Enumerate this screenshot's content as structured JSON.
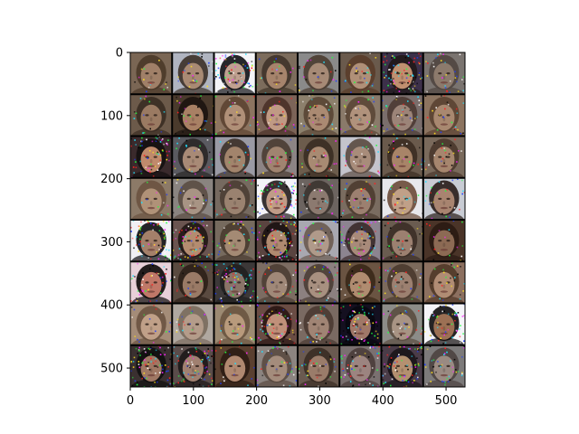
{
  "figure": {
    "content": "grid of generated face samples",
    "grid_rows": 8,
    "grid_cols": 8,
    "image_width": 530,
    "image_height": 530
  },
  "chart_data": {
    "type": "image",
    "title": "",
    "xlabel": "",
    "ylabel": "",
    "xlim": [
      0,
      530
    ],
    "ylim": [
      530,
      0
    ],
    "xticks": [
      0,
      100,
      200,
      300,
      400,
      500
    ],
    "yticks": [
      0,
      100,
      200,
      300,
      400,
      500
    ],
    "xtick_labels": [
      "0",
      "100",
      "200",
      "300",
      "400",
      "500"
    ],
    "ytick_labels": [
      "0",
      "100",
      "200",
      "300",
      "400",
      "500"
    ],
    "grid": false
  },
  "tiles": [
    {
      "bg": "#7a6654",
      "face": "#a08068",
      "hair": "#4a3828",
      "noise": 0.15
    },
    {
      "bg": "#b0b4c0",
      "face": "#a88a74",
      "hair": "#3c3028",
      "noise": 0.25
    },
    {
      "bg": "#f4f4f8",
      "face": "#c0a090",
      "hair": "#101014",
      "noise": 0.75
    },
    {
      "bg": "#7c6c5c",
      "face": "#a6846c",
      "hair": "#40342a",
      "noise": 0.2
    },
    {
      "bg": "#8a8a8a",
      "face": "#a68a76",
      "hair": "#4a3c30",
      "noise": 0.2
    },
    {
      "bg": "#6a5a4c",
      "face": "#b09078",
      "hair": "#5a3c2a",
      "noise": 0.25
    },
    {
      "bg": "#3c304a",
      "face": "#c09070",
      "hair": "#201818",
      "noise": 0.85
    },
    {
      "bg": "#7a7470",
      "face": "#8c7a6c",
      "hair": "#504640",
      "noise": 0.35
    },
    {
      "bg": "#6c5a4a",
      "face": "#9a7a62",
      "hair": "#3a2c22",
      "noise": 0.15
    },
    {
      "bg": "#4a3a2c",
      "face": "#a88064",
      "hair": "#1c1410",
      "noise": 0.25
    },
    {
      "bg": "#8c7460",
      "face": "#b09078",
      "hair": "#5c4432",
      "noise": 0.2
    },
    {
      "bg": "#7c6458",
      "face": "#c09a84",
      "hair": "#4a3028",
      "noise": 0.3
    },
    {
      "bg": "#8c806c",
      "face": "#aa8a72",
      "hair": "#584434",
      "noise": 0.3
    },
    {
      "bg": "#8a7a6a",
      "face": "#b0927c",
      "hair": "#5a4636",
      "noise": 0.3
    },
    {
      "bg": "#7a6e6c",
      "face": "#9c8478",
      "hair": "#4c3a34",
      "noise": 0.4
    },
    {
      "bg": "#8c7460",
      "face": "#a88870",
      "hair": "#5a4232",
      "noise": 0.3
    },
    {
      "bg": "#3a2a2c",
      "face": "#c08a6c",
      "hair": "#141010",
      "noise": 0.8
    },
    {
      "bg": "#5a5a60",
      "face": "#a88a76",
      "hair": "#2a2626",
      "noise": 0.3
    },
    {
      "bg": "#9a9aa4",
      "face": "#a2846c",
      "hair": "#3c3028",
      "noise": 0.2
    },
    {
      "bg": "#8c8484",
      "face": "#a08470",
      "hair": "#4a3c32",
      "noise": 0.3
    },
    {
      "bg": "#6c5c4c",
      "face": "#a88a72",
      "hair": "#3a2c22",
      "noise": 0.25
    },
    {
      "bg": "#c4c4cc",
      "face": "#a88c7a",
      "hair": "#5a4a40",
      "noise": 0.25
    },
    {
      "bg": "#6a5a4c",
      "face": "#a88468",
      "hair": "#3c2c22",
      "noise": 0.35
    },
    {
      "bg": "#7a6a5c",
      "face": "#a6866e",
      "hair": "#4a382c",
      "noise": 0.3
    },
    {
      "bg": "#8c7a68",
      "face": "#b09278",
      "hair": "#6a5240",
      "noise": 0.15
    },
    {
      "bg": "#8a8480",
      "face": "#a89484",
      "hair": "#5a4c42",
      "noise": 0.25
    },
    {
      "bg": "#766a60",
      "face": "#9a8270",
      "hair": "#4c3e34",
      "noise": 0.25
    },
    {
      "bg": "#f4f4f8",
      "face": "#c09c88",
      "hair": "#221c1c",
      "noise": 0.7
    },
    {
      "bg": "#6c6460",
      "face": "#8c7a70",
      "hair": "#3c3430",
      "noise": 0.3
    },
    {
      "bg": "#7a6c60",
      "face": "#9c8070",
      "hair": "#4c3c30",
      "noise": 0.3
    },
    {
      "bg": "#e8e8ec",
      "face": "#c0a088",
      "hair": "#6a4a38",
      "noise": 0.25
    },
    {
      "bg": "#c8ccd4",
      "face": "#a88470",
      "hair": "#281c18",
      "noise": 0.3
    },
    {
      "bg": "#f0f0f4",
      "face": "#a4806a",
      "hair": "#0c0c10",
      "noise": 0.8
    },
    {
      "bg": "#6a5450",
      "face": "#b48c70",
      "hair": "#201614",
      "noise": 0.8
    },
    {
      "bg": "#766a5e",
      "face": "#a48a74",
      "hair": "#4a3c30",
      "noise": 0.3
    },
    {
      "bg": "#5a4440",
      "face": "#b08a70",
      "hair": "#1a1212",
      "noise": 0.85
    },
    {
      "bg": "#a8a8b0",
      "face": "#b09a8a",
      "hair": "#6a5a50",
      "noise": 0.35
    },
    {
      "bg": "#8c8490",
      "face": "#a88a7a",
      "hair": "#3a2a2a",
      "noise": 0.6
    },
    {
      "bg": "#6a5c50",
      "face": "#9c8070",
      "hair": "#3c2e26",
      "noise": 0.3
    },
    {
      "bg": "#4a3428",
      "face": "#8c6a54",
      "hair": "#2a1a12",
      "noise": 0.2
    },
    {
      "bg": "#e8d0d8",
      "face": "#c07868",
      "hair": "#0c0808",
      "noise": 0.6
    },
    {
      "bg": "#5a4a40",
      "face": "#9a7a66",
      "hair": "#2c2018",
      "noise": 0.25
    },
    {
      "bg": "#3c3838",
      "face": "#8a7468",
      "hair": "#202020",
      "noise": 0.9
    },
    {
      "bg": "#7c6c62",
      "face": "#a08878",
      "hair": "#4c3e34",
      "noise": 0.35
    },
    {
      "bg": "#8c8080",
      "face": "#a89080",
      "hair": "#4a3c34",
      "noise": 0.35
    },
    {
      "bg": "#6a5442",
      "face": "#b08c70",
      "hair": "#3a2818",
      "noise": 0.25
    },
    {
      "bg": "#7c6a5c",
      "face": "#9c8070",
      "hair": "#4a3a2e",
      "noise": 0.3
    },
    {
      "bg": "#8c7060",
      "face": "#b08c74",
      "hair": "#503828",
      "noise": 0.3
    },
    {
      "bg": "#a48c78",
      "face": "#c0a088",
      "hair": "#6a5240",
      "noise": 0.2
    },
    {
      "bg": "#b0a8a0",
      "face": "#b49c8a",
      "hair": "#7a6a5c",
      "noise": 0.2
    },
    {
      "bg": "#9c8a72",
      "face": "#b89a7c",
      "hair": "#6a5440",
      "noise": 0.25
    },
    {
      "bg": "#6a4c44",
      "face": "#c0907a",
      "hair": "#2a1614",
      "noise": 0.7
    },
    {
      "bg": "#7a6a62",
      "face": "#a08474",
      "hair": "#4a3a32",
      "noise": 0.3
    },
    {
      "bg": "#141020",
      "face": "#a07868",
      "hair": "#080810",
      "noise": 0.85
    },
    {
      "bg": "#8c8c88",
      "face": "#a89484",
      "hair": "#5a4c40",
      "noise": 0.35
    },
    {
      "bg": "#f4f4f8",
      "face": "#9c7054",
      "hair": "#100c0c",
      "noise": 0.65
    },
    {
      "bg": "#3a3030",
      "face": "#a07864",
      "hair": "#101010",
      "noise": 0.9
    },
    {
      "bg": "#5a4c4a",
      "face": "#a08070",
      "hair": "#1c1818",
      "noise": 0.9
    },
    {
      "bg": "#5a4030",
      "face": "#b08870",
      "hair": "#2c1c14",
      "noise": 0.2
    },
    {
      "bg": "#8c8480",
      "face": "#a48c7c",
      "hair": "#5a4a40",
      "noise": 0.4
    },
    {
      "bg": "#6a5a50",
      "face": "#9a7c6a",
      "hair": "#3a2c24",
      "noise": 0.3
    },
    {
      "bg": "#7a7070",
      "face": "#9c8480",
      "hair": "#4a3c3a",
      "noise": 0.55
    },
    {
      "bg": "#4a3c48",
      "face": "#b49070",
      "hair": "#1a1418",
      "noise": 0.8
    },
    {
      "bg": "#7c7a7a",
      "face": "#9a8a82",
      "hair": "#4c4240",
      "noise": 0.45
    }
  ]
}
